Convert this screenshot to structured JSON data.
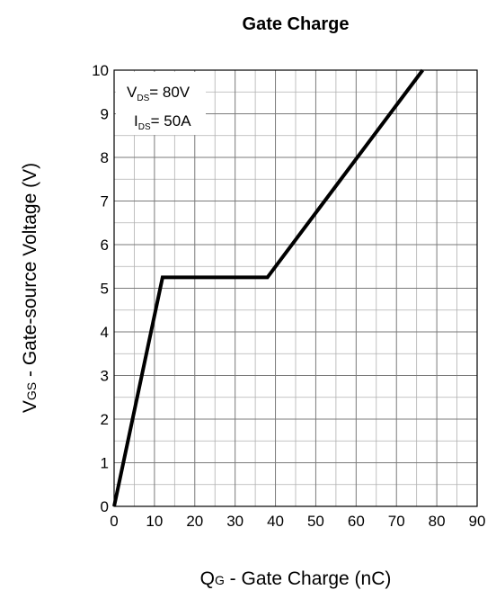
{
  "chart_data": {
    "type": "line",
    "title": "Gate Charge",
    "xlabel": {
      "main": "Q",
      "sub": "G",
      "rest": " - Gate Charge (nC)"
    },
    "ylabel": {
      "main": "V",
      "sub": "GS",
      "rest": " - Gate-source Voltage (V)"
    },
    "xlim": [
      0,
      90
    ],
    "ylim": [
      0,
      10
    ],
    "xticks": [
      "0",
      "10",
      "20",
      "30",
      "40",
      "50",
      "60",
      "70",
      "80",
      "90"
    ],
    "yticks": [
      "0",
      "1",
      "2",
      "3",
      "4",
      "5",
      "6",
      "7",
      "8",
      "9",
      "10"
    ],
    "grid": true,
    "annotations": [
      {
        "main": "V",
        "sub": "DS",
        "rest": "= 80V"
      },
      {
        "main": "I",
        "sub": "DS",
        "rest": "= 50A"
      }
    ],
    "series": [
      {
        "x": [
          0,
          12,
          38,
          76.5
        ],
        "y": [
          0,
          5.25,
          5.25,
          10
        ]
      }
    ],
    "line_color": "#000000"
  }
}
